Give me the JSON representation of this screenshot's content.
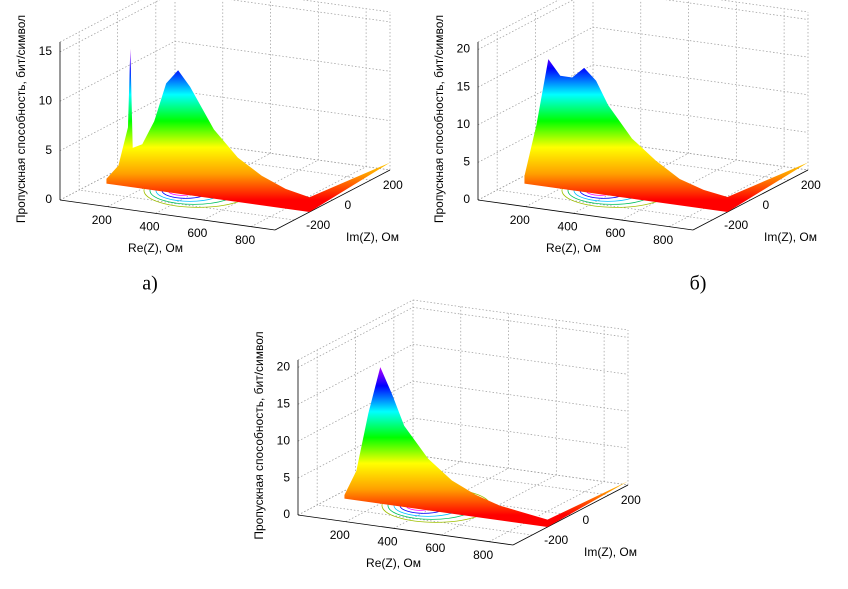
{
  "chart_data": [
    {
      "type": "surface-ridge",
      "caption": "а)",
      "xlabel": "Re(Z), Ом",
      "ylabel": "Im(Z), Ом",
      "zlabel": "Пропускная способность, бит/символ",
      "xlim": [
        0,
        900
      ],
      "xticks": [
        200,
        400,
        600,
        800
      ],
      "ylim": [
        -300,
        300
      ],
      "yticks": [
        -200,
        0,
        200
      ],
      "zlim": [
        0,
        16
      ],
      "zticks": [
        0,
        5,
        10,
        15
      ],
      "grid": true,
      "x": [
        50,
        100,
        140,
        150,
        160,
        200,
        250,
        300,
        350,
        400,
        500,
        600,
        700,
        800,
        900
      ],
      "values": [
        0.5,
        2,
        6,
        14,
        4,
        4.5,
        7,
        11,
        12.5,
        11,
        7,
        4.5,
        3,
        2,
        1.5
      ]
    },
    {
      "type": "surface-ridge",
      "caption": "б)",
      "xlabel": "Re(Z), Ом",
      "ylabel": "Im(Z), Ом",
      "zlabel": "Пропускная способность, бит/символ",
      "xlim": [
        0,
        900
      ],
      "xticks": [
        200,
        400,
        600,
        800
      ],
      "ylim": [
        -300,
        300
      ],
      "yticks": [
        -200,
        0,
        200
      ],
      "zlim": [
        0,
        21
      ],
      "zticks": [
        0,
        5,
        10,
        15,
        20
      ],
      "grid": true,
      "x": [
        50,
        100,
        150,
        200,
        250,
        300,
        350,
        400,
        500,
        600,
        700,
        800,
        900
      ],
      "values": [
        1,
        8,
        17,
        15,
        15,
        16.5,
        15,
        12,
        8,
        5.5,
        3.5,
        2.5,
        2
      ]
    },
    {
      "type": "surface-ridge",
      "xlabel": "Re(Z), Ом",
      "ylabel": "Im(Z), Ом",
      "zlabel": "Пропускная способность, бит/символ",
      "xlim": [
        0,
        900
      ],
      "xticks": [
        200,
        400,
        600,
        800
      ],
      "ylim": [
        -300,
        300
      ],
      "yticks": [
        -200,
        0,
        200
      ],
      "zlim": [
        0,
        21
      ],
      "zticks": [
        0,
        5,
        10,
        15,
        20
      ],
      "grid": true,
      "x": [
        50,
        100,
        150,
        200,
        250,
        300,
        400,
        500,
        600,
        700,
        800,
        900
      ],
      "values": [
        0.5,
        4,
        12,
        18.5,
        15,
        11,
        7,
        4.5,
        3,
        2,
        1.5,
        1
      ]
    }
  ]
}
